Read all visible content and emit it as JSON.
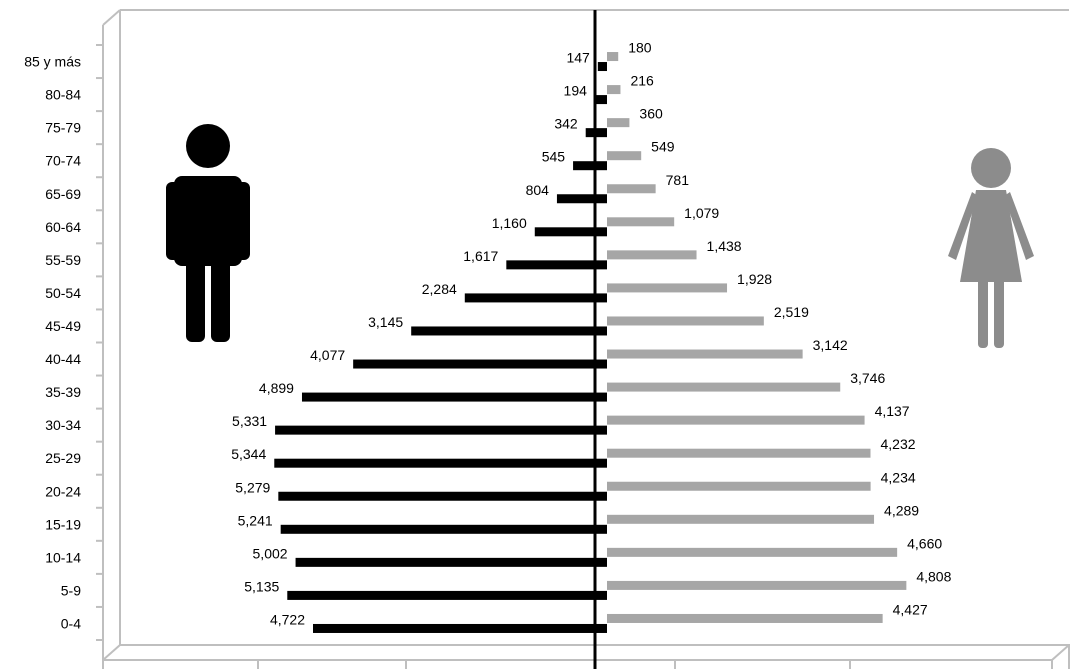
{
  "chart_data": {
    "type": "bar",
    "categories": [
      "0-4",
      "5-9",
      "10-14",
      "15-19",
      "20-24",
      "25-29",
      "30-34",
      "35-39",
      "40-44",
      "45-49",
      "50-54",
      "55-59",
      "60-64",
      "65-69",
      "70-74",
      "75-79",
      "80-84",
      "85 y más"
    ],
    "series": [
      {
        "values": [
          4722,
          5135,
          5002,
          5241,
          5279,
          5344,
          5331,
          4899,
          4077,
          3145,
          2284,
          1617,
          1160,
          804,
          545,
          342,
          194,
          147
        ],
        "labels": [
          "4,722",
          "5,135",
          "5,002",
          "5,241",
          "5,279",
          "5,344",
          "5,331",
          "4,899",
          "4,077",
          "3,145",
          "2,284",
          "1,617",
          "1,160",
          "804",
          "545",
          "342",
          "194",
          "147"
        ],
        "color": "#000000",
        "side": "left",
        "icon": "man-icon"
      },
      {
        "values": [
          4427,
          4808,
          4660,
          4289,
          4234,
          4232,
          4137,
          3746,
          3142,
          2519,
          1928,
          1438,
          1079,
          781,
          549,
          360,
          216,
          180
        ],
        "labels": [
          "4,427",
          "4,808",
          "4,660",
          "4,289",
          "4,234",
          "4,232",
          "4,137",
          "3,746",
          "3,142",
          "2,519",
          "1,928",
          "1,438",
          "1,079",
          "781",
          "549",
          "360",
          "216",
          "180"
        ],
        "color": "#a6a6a6",
        "side": "right",
        "icon": "woman-icon"
      }
    ],
    "orientation": "horizontal",
    "xlim": [
      -5800,
      5800
    ],
    "grid": false,
    "legend": "none",
    "title": "",
    "xlabel": "",
    "ylabel": ""
  }
}
